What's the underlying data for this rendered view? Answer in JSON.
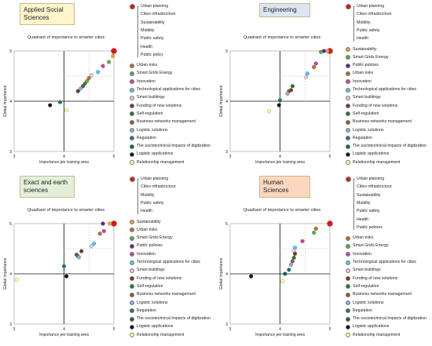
{
  "colors": {
    "Urban planning": "#d7191c",
    "Cities infrastructure": "#ff6600",
    "Sustainability": "#e8a33a",
    "Mobility": "#8a9a1f",
    "Public safety": "#1f5c2e",
    "Health": "#5ab04a",
    "Urban risks": "#c06a2a",
    "Smart Grids Energy": "#4caf50",
    "Public policies": "#6a1b9a",
    "Innovation": "#c2489c",
    "Technological applications for cities": "#4fc3f7",
    "Smart buildings": "#e7c7e8",
    "Funding of new solutions": "#6d3a1e",
    "Self-regulation": "#3b6e32",
    "Business networks management": "#8b5a3a",
    "Logistic solutions": "#8fa8dc",
    "Regulation": "#1a7a6a",
    "The sociotechnical impacts of digitization": "#1b5e50",
    "Logistic applications": "#111111",
    "Relationship management": "#ffff99"
  },
  "chart_data": [
    {
      "type": "scatter",
      "panel_title": "Applied Social Sciences",
      "title": "Quadrant of importance to smarter cities",
      "xlabel": "Importance per training area",
      "ylabel": "Global importance",
      "xlim": [
        3,
        5
      ],
      "ylim": [
        3,
        5
      ],
      "xticks": [
        "3",
        "4",
        "5"
      ],
      "yticks": [
        "3",
        "4",
        "5"
      ],
      "grouped_labels": [
        "Urban planning",
        "Cities infrastructure",
        "Sustainability",
        "Mobility",
        "Public safety",
        "Health",
        "Public policy"
      ],
      "legend": [
        "Urban risks",
        "Smart Grids Energy",
        "Innovation",
        "Technological applications for cities",
        "Smart buildings",
        "Funding of new solutions",
        "Self-regulation",
        "Business networks management",
        "Logistic solutions",
        "Regulation",
        "The sociotechnical impacts of digitization",
        "Logistic applications",
        "Relationship management"
      ],
      "points": [
        {
          "name": "Urban planning",
          "x": 5.0,
          "y": 5.0
        },
        {
          "name": "Sustainability",
          "x": 4.98,
          "y": 4.9
        },
        {
          "name": "Health",
          "x": 4.9,
          "y": 4.78
        },
        {
          "name": "Innovation",
          "x": 4.78,
          "y": 4.7
        },
        {
          "name": "Technological applications for cities",
          "x": 4.68,
          "y": 4.58
        },
        {
          "name": "Smart buildings",
          "x": 4.55,
          "y": 4.52
        },
        {
          "name": "Urban risks",
          "x": 4.5,
          "y": 4.46
        },
        {
          "name": "Smart Grids Energy",
          "x": 4.46,
          "y": 4.4
        },
        {
          "name": "Business networks management",
          "x": 4.42,
          "y": 4.35
        },
        {
          "name": "Self-regulation",
          "x": 4.38,
          "y": 4.3
        },
        {
          "name": "Logistic solutions",
          "x": 4.33,
          "y": 4.25
        },
        {
          "name": "Funding of new solutions",
          "x": 4.28,
          "y": 4.2
        },
        {
          "name": "Regulation",
          "x": 3.92,
          "y": 3.98
        },
        {
          "name": "Logistic applications",
          "x": 3.72,
          "y": 3.92
        },
        {
          "name": "Relationship management",
          "x": 4.05,
          "y": 3.82
        }
      ]
    },
    {
      "type": "scatter",
      "panel_title": "Engineering",
      "title": "Quadrant of importance to smarter cities",
      "xlabel": "Importance per training area",
      "ylabel": "Global importance",
      "xlim": [
        3,
        5
      ],
      "ylim": [
        3,
        5
      ],
      "xticks": [
        "3",
        "4",
        "5"
      ],
      "yticks": [
        "3",
        "4",
        "5"
      ],
      "grouped_labels": [
        "Urban planning",
        "Cities infrastructure",
        "Mobility",
        "Public safety",
        "Health"
      ],
      "legend": [
        "Sustainability",
        "Smart Grids Energy",
        "Public policies",
        "Urban risks",
        "Innovation",
        "Technological applications for cities",
        "Smart buildings",
        "Funding of new solutions",
        "Self-regulation",
        "Business networks management",
        "Logistic solutions",
        "Regulation",
        "The sociotechnical impacts of digitization",
        "Logistic applications",
        "Relationship management"
      ],
      "points": [
        {
          "name": "Urban planning",
          "x": 5.0,
          "y": 5.0
        },
        {
          "name": "Sustainability",
          "x": 4.95,
          "y": 5.0
        },
        {
          "name": "Public policies",
          "x": 4.88,
          "y": 5.0
        },
        {
          "name": "Smart Grids Energy",
          "x": 4.82,
          "y": 4.98
        },
        {
          "name": "Innovation",
          "x": 4.72,
          "y": 4.75
        },
        {
          "name": "Urban risks",
          "x": 4.68,
          "y": 4.68
        },
        {
          "name": "Technological applications for cities",
          "x": 4.55,
          "y": 4.55
        },
        {
          "name": "Smart buildings",
          "x": 4.52,
          "y": 4.48
        },
        {
          "name": "Funding of new solutions",
          "x": 4.22,
          "y": 4.22
        },
        {
          "name": "Self-regulation",
          "x": 4.25,
          "y": 4.3
        },
        {
          "name": "Business networks management",
          "x": 4.18,
          "y": 4.2
        },
        {
          "name": "Logistic solutions",
          "x": 4.15,
          "y": 4.15
        },
        {
          "name": "Regulation",
          "x": 4.0,
          "y": 4.02
        },
        {
          "name": "Logistic applications",
          "x": 3.98,
          "y": 3.92
        },
        {
          "name": "Relationship management",
          "x": 3.78,
          "y": 3.8
        }
      ]
    },
    {
      "type": "scatter",
      "panel_title": "Exact and earth sciences",
      "title": "Quadrant of importance to smarter cities",
      "xlabel": "Importance per training area",
      "ylabel": "Global importance",
      "xlim": [
        3,
        5
      ],
      "ylim": [
        3,
        5
      ],
      "xticks": [
        "3",
        "4",
        "5"
      ],
      "yticks": [
        "3",
        "4",
        "5"
      ],
      "grouped_labels": [
        "Urban planning",
        "Cities infrastructure",
        "Mobility",
        "Public safety",
        "Health"
      ],
      "legend": [
        "Sustainability",
        "Urban risks",
        "Smart Grids Energy",
        "Public policies",
        "Innovation",
        "Technological applications for cities",
        "Smart buildings",
        "Funding of new solutions",
        "Self-regulation",
        "Business networks management",
        "Logistic solutions",
        "Regulation",
        "The sociotechnical impacts of digitization",
        "Logistic applications",
        "Relationship management"
      ],
      "points": [
        {
          "name": "Urban planning",
          "x": 5.0,
          "y": 5.0
        },
        {
          "name": "Sustainability",
          "x": 4.92,
          "y": 5.0
        },
        {
          "name": "Public policies",
          "x": 4.78,
          "y": 5.0
        },
        {
          "name": "Innovation",
          "x": 4.8,
          "y": 4.85
        },
        {
          "name": "Urban risks",
          "x": 4.72,
          "y": 4.8
        },
        {
          "name": "Technological applications for cities",
          "x": 4.6,
          "y": 4.6
        },
        {
          "name": "Smart buildings",
          "x": 4.55,
          "y": 4.55
        },
        {
          "name": "Funding of new solutions",
          "x": 4.35,
          "y": 4.45
        },
        {
          "name": "Self-regulation",
          "x": 4.25,
          "y": 4.38
        },
        {
          "name": "Business networks management",
          "x": 4.28,
          "y": 4.35
        },
        {
          "name": "Logistic solutions",
          "x": 4.3,
          "y": 4.33
        },
        {
          "name": "Regulation",
          "x": 4.0,
          "y": 4.15
        },
        {
          "name": "Logistic applications",
          "x": 4.05,
          "y": 3.95
        },
        {
          "name": "Relationship management",
          "x": 3.05,
          "y": 3.88
        }
      ]
    },
    {
      "type": "scatter",
      "panel_title": "Human Sciences",
      "title": "Quadrant of importance to smarter cities",
      "xlabel": "Importance per training area",
      "ylabel": "Global importance",
      "xlim": [
        3,
        5
      ],
      "ylim": [
        3,
        5
      ],
      "xticks": [
        "3",
        "4",
        "5"
      ],
      "yticks": [
        "3",
        "4",
        "5"
      ],
      "grouped_labels": [
        "Urban planning",
        "Cities infrastructure",
        "Sustainability",
        "Mobility",
        "Public safety",
        "Health",
        "Public policies"
      ],
      "legend": [
        "Urban risks",
        "Smart Grids Energy",
        "Innovation",
        "Technological applications for cities",
        "Smart buildings",
        "Funding of new solutions",
        "Self-regulation",
        "Business networks management",
        "Logistic solutions",
        "Regulation",
        "The sociotechnical impacts of digitization",
        "Logistic applications",
        "Relationship management"
      ],
      "points": [
        {
          "name": "Urban planning",
          "x": 5.0,
          "y": 5.0
        },
        {
          "name": "Urban risks",
          "x": 4.72,
          "y": 4.9
        },
        {
          "name": "Smart Grids Energy",
          "x": 4.68,
          "y": 4.82
        },
        {
          "name": "Innovation",
          "x": 4.45,
          "y": 4.65
        },
        {
          "name": "Technological applications for cities",
          "x": 4.3,
          "y": 4.52
        },
        {
          "name": "Smart buildings",
          "x": 4.28,
          "y": 4.46
        },
        {
          "name": "Funding of new solutions",
          "x": 4.3,
          "y": 4.4
        },
        {
          "name": "Self-regulation",
          "x": 4.28,
          "y": 4.32
        },
        {
          "name": "Business networks management",
          "x": 4.25,
          "y": 4.25
        },
        {
          "name": "Logistic solutions",
          "x": 4.22,
          "y": 4.18
        },
        {
          "name": "Regulation",
          "x": 4.18,
          "y": 4.08
        },
        {
          "name": "The sociotechnical impacts of digitization",
          "x": 4.1,
          "y": 4.0
        },
        {
          "name": "Logistic applications",
          "x": 3.42,
          "y": 3.95
        },
        {
          "name": "Relationship management",
          "x": 4.05,
          "y": 3.85
        }
      ]
    }
  ]
}
